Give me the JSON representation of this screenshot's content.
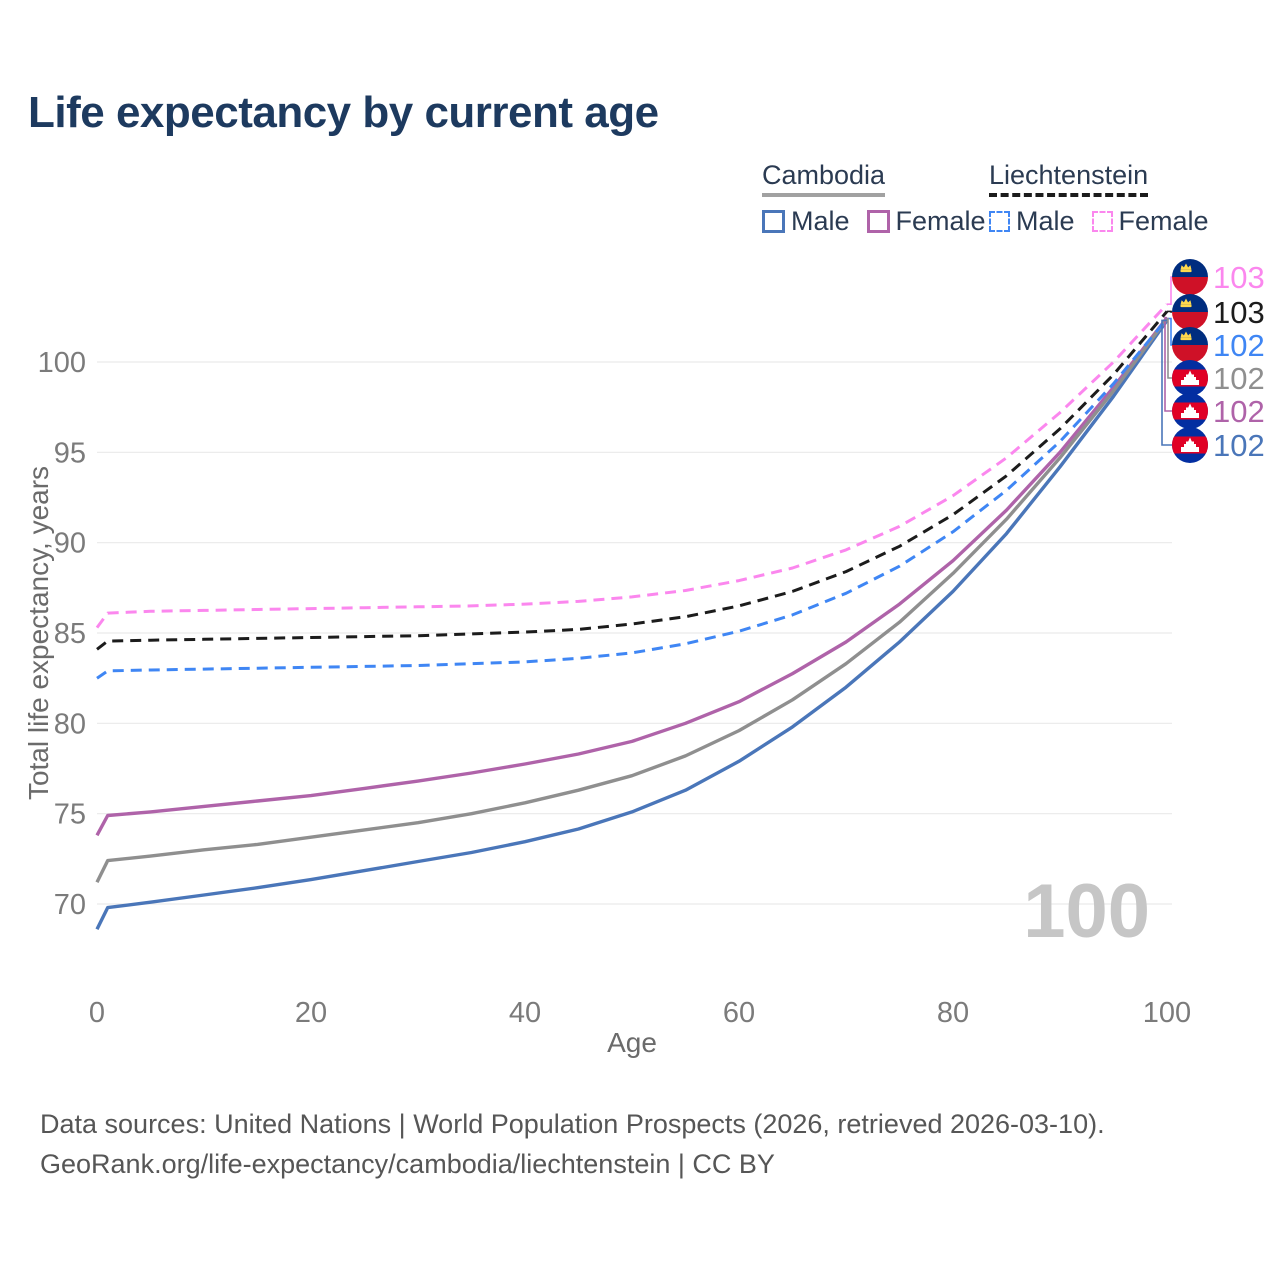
{
  "header": {
    "title": "Life expectancy by current age"
  },
  "legend": {
    "groups": [
      {
        "label": "Cambodia",
        "underline": {
          "color": "#a1a1a1",
          "style": "solid"
        },
        "items": [
          {
            "label": "Male",
            "color": "#4a76b9",
            "dashed": false
          },
          {
            "label": "Female",
            "color": "#af63a9",
            "dashed": false
          }
        ]
      },
      {
        "label": "Liechtenstein",
        "underline": {
          "color": "#1c1c1c",
          "style": "dashed"
        },
        "items": [
          {
            "label": "Male",
            "color": "#3f86f4",
            "dashed": true
          },
          {
            "label": "Female",
            "color": "#fb87ee",
            "dashed": true
          }
        ]
      }
    ]
  },
  "chart_data": {
    "type": "line",
    "title": "Life expectancy by current age",
    "xlabel": "Age",
    "ylabel": "Total life expectancy, years",
    "xlim": [
      0,
      100
    ],
    "ylim": [
      67,
      104.5
    ],
    "xticks": [
      0,
      20,
      40,
      60,
      80,
      100
    ],
    "yticks": [
      70,
      75,
      80,
      85,
      90,
      95,
      100
    ],
    "grid": "horizontal-only",
    "legend_position": "top-right",
    "watermark": "100",
    "x": [
      0,
      1,
      5,
      10,
      15,
      20,
      25,
      30,
      35,
      40,
      45,
      50,
      55,
      60,
      65,
      70,
      75,
      80,
      85,
      90,
      95,
      100
    ],
    "series": [
      {
        "name": "Liechtenstein Female",
        "country": "Liechtenstein",
        "sex": "Female",
        "color": "#fb87ee",
        "dashed": true,
        "flag": "liechtenstein",
        "end_label": "103",
        "values": [
          85.3,
          86.1,
          86.2,
          86.25,
          86.3,
          86.35,
          86.4,
          86.45,
          86.5,
          86.6,
          86.75,
          87,
          87.35,
          87.9,
          88.6,
          89.6,
          90.9,
          92.6,
          94.7,
          97.2,
          100,
          103.2
        ]
      },
      {
        "name": "Liechtenstein Both sexes",
        "country": "Liechtenstein",
        "sex": "Both",
        "color": "#1c1c1c",
        "dashed": true,
        "flag": "liechtenstein",
        "end_label": "103",
        "values": [
          84.1,
          84.55,
          84.6,
          84.65,
          84.7,
          84.75,
          84.8,
          84.85,
          84.95,
          85.05,
          85.2,
          85.5,
          85.9,
          86.5,
          87.3,
          88.4,
          89.8,
          91.55,
          93.7,
          96.3,
          99.3,
          102.8
        ]
      },
      {
        "name": "Liechtenstein Male",
        "country": "Liechtenstein",
        "sex": "Male",
        "color": "#3f86f4",
        "dashed": true,
        "flag": "liechtenstein",
        "end_label": "102",
        "values": [
          82.5,
          82.9,
          82.95,
          83,
          83.05,
          83.1,
          83.15,
          83.2,
          83.3,
          83.4,
          83.6,
          83.9,
          84.4,
          85.1,
          86,
          87.2,
          88.7,
          90.6,
          92.9,
          95.6,
          98.8,
          102.4
        ]
      },
      {
        "name": "Cambodia Both sexes",
        "country": "Cambodia",
        "sex": "Both",
        "color": "#8f8f8f",
        "dashed": false,
        "flag": "cambodia",
        "end_label": "102",
        "values": [
          71.2,
          72.4,
          72.65,
          73,
          73.3,
          73.7,
          74.1,
          74.5,
          75,
          75.6,
          76.3,
          77.1,
          78.2,
          79.6,
          81.3,
          83.3,
          85.6,
          88.3,
          91.3,
          94.7,
          98.4,
          102.4
        ]
      },
      {
        "name": "Cambodia Female",
        "country": "Cambodia",
        "sex": "Female",
        "color": "#af63a9",
        "dashed": false,
        "flag": "cambodia",
        "end_label": "102",
        "values": [
          73.8,
          74.9,
          75.1,
          75.4,
          75.7,
          76,
          76.4,
          76.8,
          77.25,
          77.75,
          78.3,
          79,
          80,
          81.2,
          82.75,
          84.5,
          86.6,
          89,
          91.8,
          95,
          98.6,
          102.45
        ]
      },
      {
        "name": "Cambodia Male",
        "country": "Cambodia",
        "sex": "Male",
        "color": "#4a76b9",
        "dashed": false,
        "flag": "cambodia",
        "end_label": "102",
        "values": [
          68.6,
          69.8,
          70.1,
          70.5,
          70.9,
          71.35,
          71.85,
          72.35,
          72.85,
          73.45,
          74.15,
          75.1,
          76.3,
          77.9,
          79.8,
          82,
          84.5,
          87.3,
          90.5,
          94.2,
          98.1,
          102.3
        ]
      }
    ]
  },
  "flag_colors": {
    "liechtenstein": {
      "top": "#002d7f",
      "bottom": "#cf1127",
      "crown": "#ffd84d"
    },
    "cambodia": {
      "band": "#032ea1",
      "center": "#e00025",
      "temple": "#ffffff"
    }
  },
  "footer": {
    "line1": "Data sources: United Nations | World Population Prospects (2026, retrieved 2026-03-10).",
    "line2": "GeoRank.org/life-expectancy/cambodia/liechtenstein | CC BY"
  }
}
